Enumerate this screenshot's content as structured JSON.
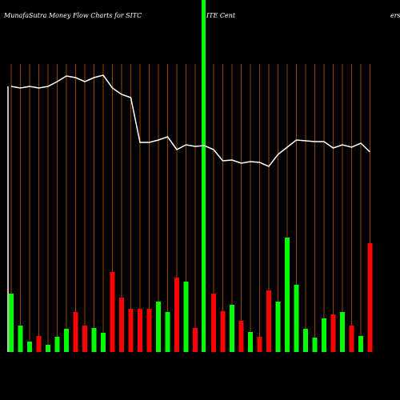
{
  "chart_data": {
    "type": "money-flow",
    "title": "MunafaSutra  Money Flow  Charts for SITC",
    "title_middle": "ITE Cent",
    "title_right": "ers",
    "ylim": [
      0,
      430
    ],
    "series": [
      {
        "name": "price",
        "color": "#ffffff",
        "values": [
          332,
          330,
          332,
          330,
          332,
          338,
          345,
          343,
          338,
          343,
          346,
          330,
          322,
          318,
          262,
          262,
          265,
          269,
          253,
          259,
          257,
          258,
          253,
          239,
          240,
          236,
          238,
          237,
          232,
          247,
          256,
          265,
          264,
          263,
          263,
          255,
          259,
          256,
          261,
          250
        ]
      },
      {
        "name": "volume",
        "values": [
          73,
          33,
          13,
          20,
          9,
          19,
          29,
          50,
          33,
          30,
          24,
          100,
          68,
          54,
          54,
          54,
          63,
          50,
          93,
          88,
          30,
          null,
          73,
          51,
          59,
          39,
          25,
          19,
          77,
          63,
          143,
          84,
          29,
          18,
          42,
          47,
          50,
          33,
          20,
          136
        ],
        "colors": [
          "#00ff00",
          "#00ff00",
          "#00ff00",
          "#ff0000",
          "#00ff00",
          "#00ff00",
          "#00ff00",
          "#ff0000",
          "#ff0000",
          "#00ff00",
          "#00ff00",
          "#ff0000",
          "#ff0000",
          "#ff0000",
          "#ff0000",
          "#ff0000",
          "#00ff00",
          "#00ff00",
          "#ff0000",
          "#00ff00",
          "#ff0000",
          null,
          "#ff0000",
          "#ff0000",
          "#00ff00",
          "#ff0000",
          "#00ff00",
          "#ff0000",
          "#ff0000",
          "#00ff00",
          "#00ff00",
          "#00ff00",
          "#00ff00",
          "#00ff00",
          "#00ff00",
          "#ff0000",
          "#00ff00",
          "#ff0000",
          "#00ff00",
          "#ff0000"
        ]
      }
    ]
  }
}
